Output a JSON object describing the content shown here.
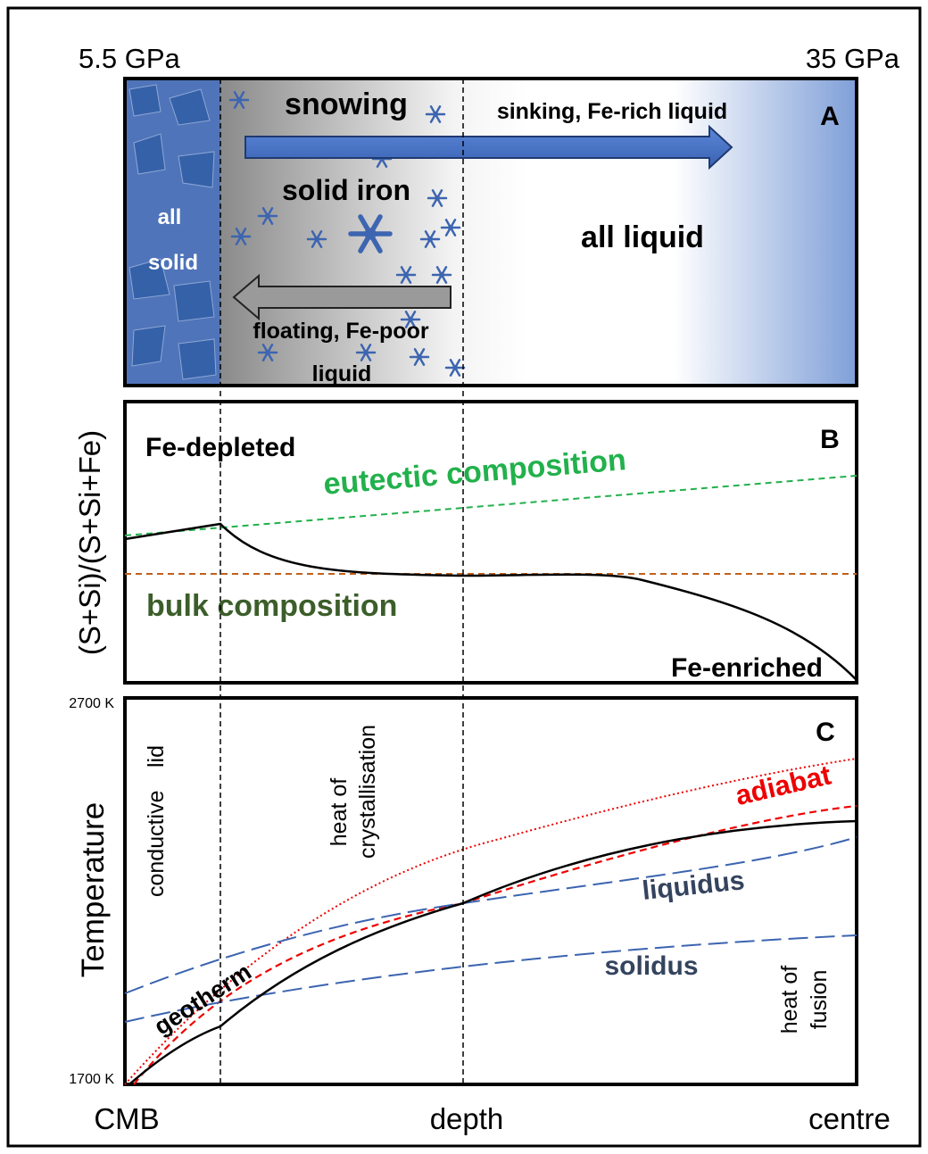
{
  "header": {
    "pressure_left": "5.5 GPa",
    "pressure_right": "35 GPa"
  },
  "panel_a": {
    "label": "A",
    "snowing": "snowing",
    "sinking": "sinking, Fe-rich liquid",
    "solid_iron": "solid iron",
    "all_solid": [
      "all",
      "solid"
    ],
    "all_liquid": "all liquid",
    "floating": [
      "floating, Fe-poor",
      "liquid"
    ]
  },
  "panel_b": {
    "label": "B",
    "y_label": "(S+Si)/(S+Si+Fe)",
    "fe_depleted": "Fe-depleted",
    "eutectic": "eutectic composition",
    "bulk": "bulk composition",
    "fe_enriched": "Fe-enriched"
  },
  "panel_c": {
    "label": "C",
    "y_label": "Temperature",
    "y_top": "2700 K",
    "y_bottom": "1700 K",
    "conductive_lid": [
      "conductive",
      "lid"
    ],
    "heat_of_crystallisation": [
      "heat of",
      "crystallisation"
    ],
    "adiabat": "adiabat",
    "liquidus": "liquidus",
    "solidus": "solidus",
    "geotherm": "geotherm",
    "heat_of_fusion": [
      "heat of",
      "fusion"
    ]
  },
  "x_axis": {
    "left": "CMB",
    "middle": "depth",
    "right": "centre"
  }
}
